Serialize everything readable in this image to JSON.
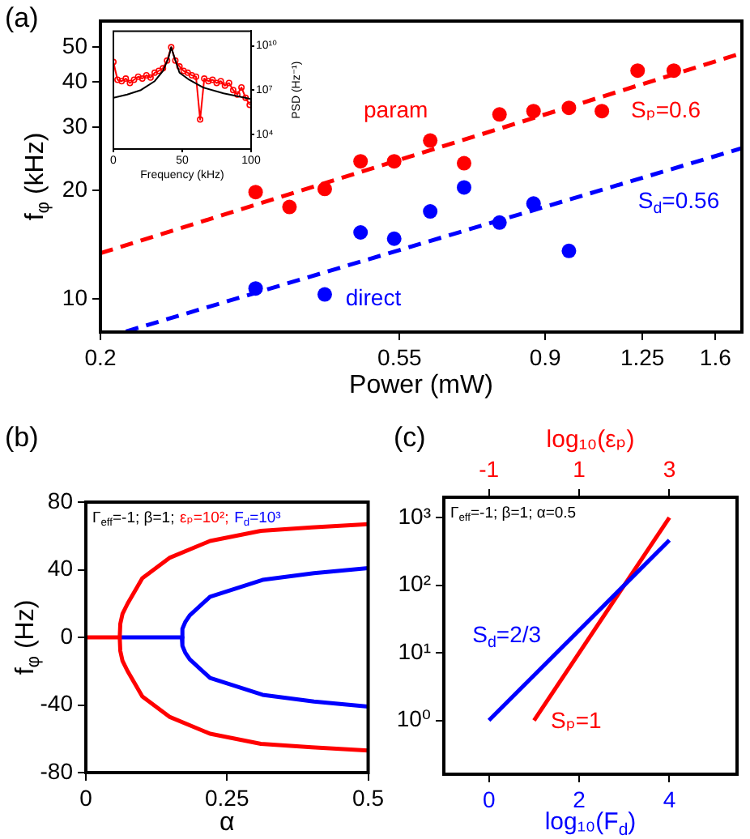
{
  "chart_data": [
    {
      "type": "scatter",
      "title": "(a)",
      "xlabel": "Power (mW)",
      "ylabel": "f$_{φ}$ (kHz)",
      "log": "xy",
      "xlim": [
        0.2,
        1.75
      ],
      "xticks": [
        0.2,
        0.55,
        0.9,
        1.25,
        1.6
      ],
      "ylim": [
        8.1,
        59
      ],
      "yticks": [
        10,
        20,
        30,
        40,
        50
      ],
      "grid": false,
      "marker": "circle",
      "series": [
        {
          "type": "scatter",
          "name": "param",
          "color": "#ff0000",
          "x": [
            0.338,
            0.379,
            0.427,
            0.482,
            0.54,
            0.61,
            0.684,
            0.771,
            0.865,
            0.975,
            1.09,
            1.23,
            1.39
          ],
          "values": [
            19.8,
            18.0,
            20.2,
            24.1,
            24.1,
            27.5,
            23.8,
            32.5,
            33.2,
            33.9,
            33.2,
            43.0,
            43.0
          ]
        },
        {
          "type": "scatter",
          "name": "direct",
          "color": "#0000ff",
          "x": [
            0.338,
            0.427,
            0.482,
            0.54,
            0.61,
            0.684,
            0.771,
            0.865,
            0.975
          ],
          "values": [
            10.7,
            10.3,
            15.3,
            14.7,
            17.5,
            20.4,
            16.3,
            18.4,
            13.6
          ]
        },
        {
          "type": "line",
          "name": "Sₚ=0.6",
          "color": "#ff0000",
          "line_style": "dashed",
          "marker": "none",
          "x": [
            0.2,
            1.75
          ],
          "values": [
            13.4,
            48.1
          ]
        },
        {
          "type": "line",
          "name": "S$_{d}$=0.56",
          "color": "#0000ff",
          "line_style": "dashed",
          "marker": "none",
          "x": [
            0.218,
            1.75
          ],
          "values": [
            8.13,
            26.2
          ]
        }
      ]
    },
    {
      "type": "line",
      "xlabel": "Frequency (kHz)",
      "y2label": "PSD (Hz⁻¹)",
      "log": "y2",
      "xlim": [
        0,
        100
      ],
      "xticks": [
        0,
        50,
        100
      ],
      "y2lim": [
        1000,
        100000000000
      ],
      "y2ticks": [
        {
          "value": 10000,
          "label": "10⁴"
        },
        {
          "value": 10000000,
          "label": "10⁷"
        },
        {
          "value": 10000000000,
          "label": "10¹⁰"
        }
      ],
      "grid": false,
      "series": [
        {
          "axis": "y2",
          "color": "#ff0000",
          "marker": "circle",
          "x": [
            0,
            3,
            6,
            9,
            12,
            15,
            18,
            21,
            24,
            27,
            30,
            33,
            36,
            39,
            42,
            45,
            48,
            51,
            54,
            57,
            60,
            63,
            66,
            69,
            72,
            75,
            78,
            81,
            84,
            87,
            90,
            93,
            96,
            99
          ],
          "values": [
            800000000,
            50000000,
            40000000,
            60000000,
            30000000,
            50000000,
            80000000,
            60000000,
            100000000,
            70000000,
            150000000,
            200000000,
            300000000,
            1000000000,
            8000000000,
            1000000000,
            400000000,
            200000000,
            150000000,
            100000000,
            80000000,
            100000,
            60000000,
            40000000,
            50000000,
            30000000,
            40000000,
            20000000,
            30000000,
            10000000,
            5000000,
            15000000,
            3000000,
            1000000
          ]
        },
        {
          "axis": "y2",
          "color": "#000000",
          "marker": "none",
          "x": [
            0,
            10,
            20,
            30,
            36,
            40,
            42,
            44,
            48,
            55,
            65,
            80,
            100
          ],
          "values": [
            3000000,
            5000000,
            10000000,
            40000000,
            200000000,
            1500000000,
            8000000000,
            2000000000,
            150000000,
            50000000,
            15000000,
            6000000,
            2500000
          ]
        }
      ]
    },
    {
      "type": "line",
      "title": "(b)",
      "xlabel": "α",
      "ylabel": "f$_{φ}$ (Hz)",
      "xlim": [
        0,
        0.5
      ],
      "xticks": [
        0,
        0.25,
        0.5
      ],
      "ylim": [
        -80,
        80
      ],
      "yticks": [
        -80,
        -40,
        0,
        40,
        80
      ],
      "grid": false,
      "annotations": [
        "Γ$_{eff}$=-1; β=1;",
        "εₚ=10²;",
        "F$_{d}$=10³"
      ],
      "series": [
        {
          "color": "#ff0000",
          "x": [
            0,
            0.06,
            0.061,
            0.065,
            0.074,
            0.1,
            0.148,
            0.22,
            0.31,
            0.4,
            0.5
          ],
          "values": [
            0,
            0,
            8,
            14,
            20,
            35,
            47,
            57,
            63,
            65,
            67
          ]
        },
        {
          "color": "#ff0000",
          "x": [
            0.06,
            0.061,
            0.065,
            0.074,
            0.1,
            0.148,
            0.22,
            0.31,
            0.4,
            0.5
          ],
          "values": [
            0,
            -8,
            -14,
            -20,
            -35,
            -47,
            -57,
            -63,
            -65,
            -67
          ]
        },
        {
          "color": "#0000ff",
          "x": [
            0.06,
            0.17,
            0.171,
            0.176,
            0.184,
            0.22,
            0.313,
            0.404,
            0.5
          ],
          "values": [
            0,
            0,
            5,
            9,
            13,
            24,
            34,
            38,
            41
          ]
        },
        {
          "color": "#0000ff",
          "x": [
            0.17,
            0.171,
            0.176,
            0.184,
            0.22,
            0.313,
            0.404,
            0.5
          ],
          "values": [
            0,
            -5,
            -9,
            -13,
            -24,
            -34,
            -38,
            -41
          ]
        }
      ]
    },
    {
      "type": "line",
      "title": "(c)",
      "xlabel": "log₁₀(F$_{d}$)",
      "x2label": "log₁₀(εₚ)",
      "log": "y",
      "xlim": [
        -1,
        5.5
      ],
      "xticks": [
        0,
        2,
        4
      ],
      "x2lim": [
        -2,
        4.5
      ],
      "x2ticks": [
        -1,
        1,
        3
      ],
      "ylim": [
        0.16,
        2000
      ],
      "yticks": [
        {
          "value": 1,
          "label": "10⁰"
        },
        {
          "value": 10,
          "label": "10¹"
        },
        {
          "value": 100,
          "label": "10²"
        },
        {
          "value": 1000,
          "label": "10³"
        }
      ],
      "grid": false,
      "annotations": [
        "Γ$_{eff}$=-1; β=1; α=0.5"
      ],
      "series": [
        {
          "name": "S$_{d}$=2/3",
          "color": "#0000ff",
          "x": [
            0,
            4
          ],
          "values": [
            1,
            464
          ]
        },
        {
          "name": "Sₚ=1",
          "color": "#ff0000",
          "x": [
            1,
            4
          ],
          "values": [
            1,
            1000
          ]
        }
      ]
    }
  ]
}
